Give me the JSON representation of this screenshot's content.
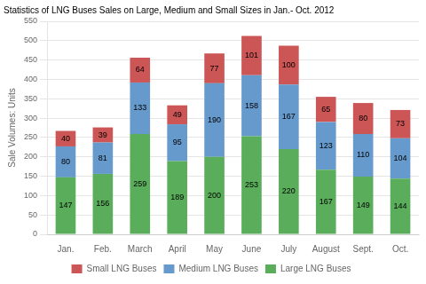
{
  "chart_data": {
    "type": "bar",
    "title": "Statistics of LNG Buses Sales on Large, Medium and Small Sizes in Jan.- Oct. 2012",
    "ylabel": "Sale Volumes: Units",
    "categories": [
      "Jan.",
      "Feb.",
      "March",
      "April",
      "May",
      "June",
      "July",
      "August",
      "Sept.",
      "Oct."
    ],
    "series": [
      {
        "name": "Large LNG Buses",
        "color": "#5aad5a",
        "values": [
          147,
          156,
          259,
          189,
          200,
          253,
          220,
          167,
          149,
          144
        ]
      },
      {
        "name": "Medium LNG Buses",
        "color": "#6699cc",
        "values": [
          80,
          81,
          133,
          95,
          190,
          158,
          167,
          123,
          110,
          104
        ]
      },
      {
        "name": "Small LNG Buses",
        "color": "#cc5555",
        "values": [
          40,
          39,
          64,
          49,
          77,
          101,
          100,
          65,
          80,
          73
        ]
      }
    ],
    "stacked": true,
    "data_labels": true,
    "ylim": [
      0,
      550
    ],
    "yticks": [
      0,
      50,
      100,
      150,
      200,
      250,
      300,
      350,
      400,
      450,
      500,
      550
    ],
    "grid": true,
    "legend": "bottom"
  }
}
